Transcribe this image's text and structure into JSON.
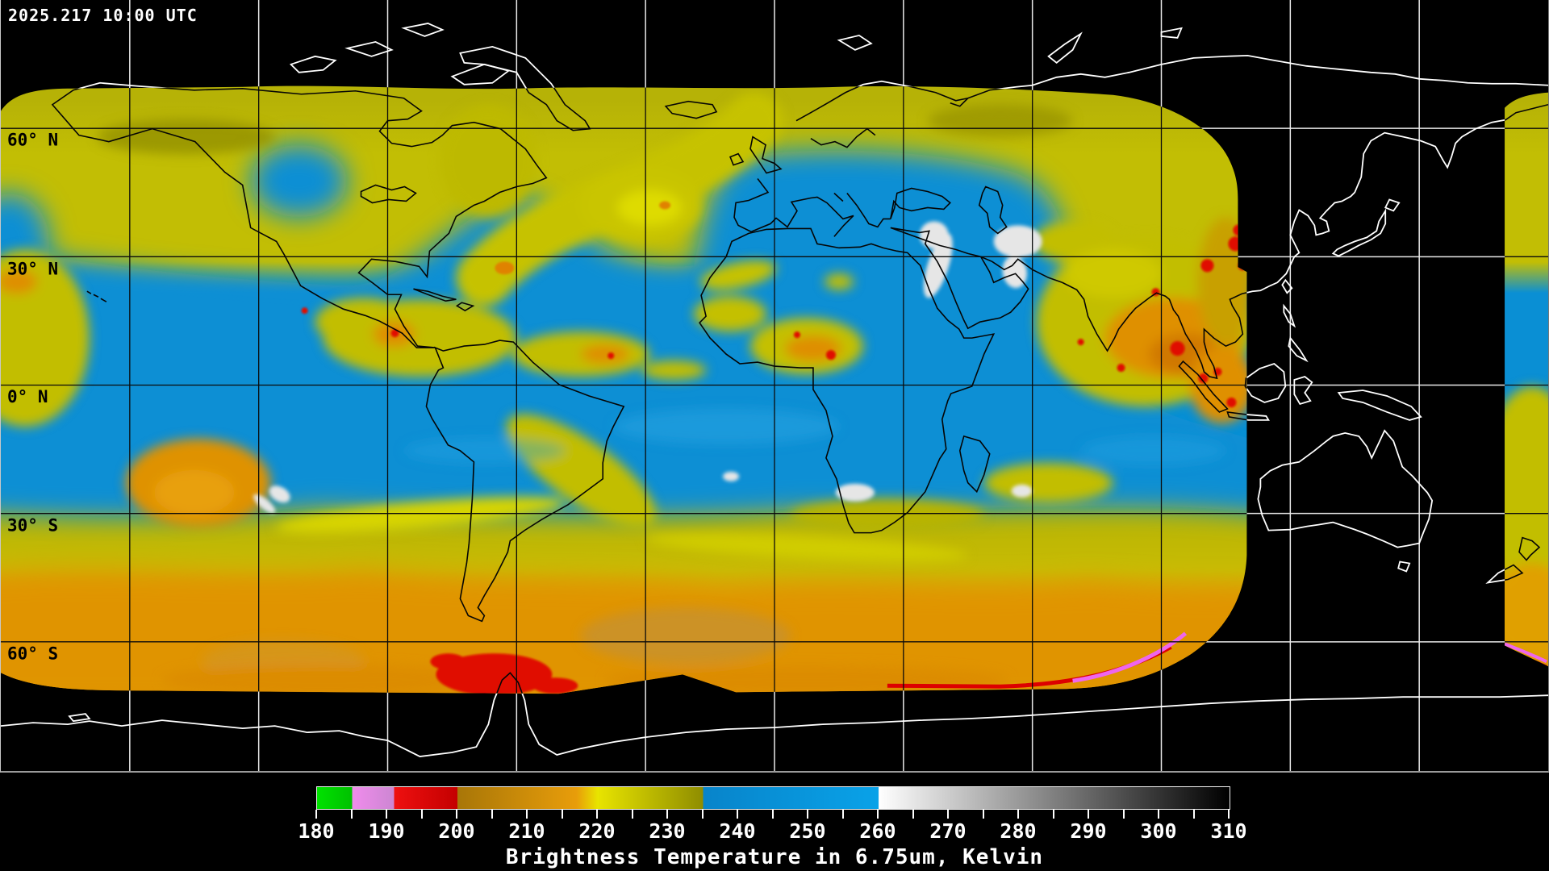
{
  "header": {
    "timestamp": "2025.217 10:00 UTC"
  },
  "map": {
    "latitude_labels": [
      {
        "text": "60° N"
      },
      {
        "text": "30° N"
      },
      {
        "text": "0° N"
      },
      {
        "text": "30° S"
      },
      {
        "text": "60° S"
      }
    ],
    "grid": {
      "interval_degrees": 30
    },
    "colors": {
      "no_data_background": "#000000",
      "coastline_outside_data": "#ffffff",
      "coastline_inside_data": "#000000",
      "gridline_outside_data": "#ffffff",
      "gridline_inside_data": "#000000"
    }
  },
  "colorbar": {
    "title": "Brightness Temperature in 6.75um, Kelvin",
    "range": {
      "min": 180,
      "max": 310
    },
    "minor_tick_step": 5,
    "major_tick_step": 10,
    "tick_labels": [
      "180",
      "190",
      "200",
      "210",
      "220",
      "230",
      "240",
      "250",
      "260",
      "270",
      "280",
      "290",
      "300",
      "310"
    ],
    "stops": [
      {
        "t": 180,
        "color": "#00e200"
      },
      {
        "t": 185,
        "color": "#00c000"
      },
      {
        "t": 185,
        "color": "#f08cec"
      },
      {
        "t": 191,
        "color": "#cc86d2"
      },
      {
        "t": 191,
        "color": "#ee1010"
      },
      {
        "t": 200,
        "color": "#c40000"
      },
      {
        "t": 200,
        "color": "#a87608"
      },
      {
        "t": 217,
        "color": "#e89d0a"
      },
      {
        "t": 220,
        "color": "#e8e400"
      },
      {
        "t": 235,
        "color": "#8f8d00"
      },
      {
        "t": 235,
        "color": "#0884ca"
      },
      {
        "t": 260,
        "color": "#09a2e8"
      },
      {
        "t": 260,
        "color": "#ffffff"
      },
      {
        "t": 310,
        "color": "#000000"
      }
    ]
  }
}
